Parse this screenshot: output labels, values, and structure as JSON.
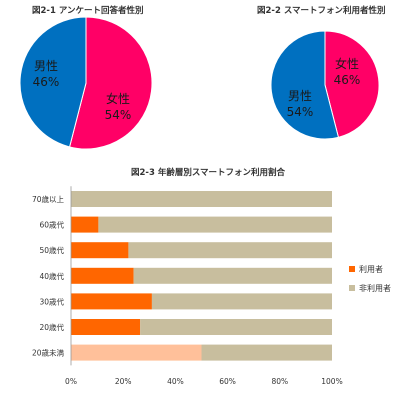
{
  "chart_data": [
    {
      "id": "fig1",
      "type": "pie",
      "title": "図2-1 アンケート回答者性別",
      "slices": [
        {
          "label": "男性",
          "value": 46,
          "display": "46%",
          "color": "#0070C0"
        },
        {
          "label": "女性",
          "value": 54,
          "display": "54%",
          "color": "#FF0066"
        }
      ]
    },
    {
      "id": "fig2",
      "type": "pie",
      "title": "図2-2 スマートフォン利用者性別",
      "slices": [
        {
          "label": "男性",
          "value": 54,
          "display": "54%",
          "color": "#0070C0"
        },
        {
          "label": "女性",
          "value": 46,
          "display": "46%",
          "color": "#FF0066"
        }
      ]
    },
    {
      "id": "fig3",
      "type": "bar",
      "orientation": "horizontal",
      "stacked": "percent",
      "title": "図2-3 年齢層別スマートフォン利用割合",
      "categories": [
        "70歳以上",
        "60歳代",
        "50歳代",
        "40歳代",
        "30歳代",
        "20歳代",
        "20歳未満"
      ],
      "series": [
        {
          "name": "利用者",
          "color": "#FF6600",
          "values": [
            0,
            10.5,
            22,
            24,
            31,
            26.5,
            50
          ]
        },
        {
          "name": "非利用者",
          "color": "#C8BE9E",
          "values": [
            100,
            89.5,
            78,
            76,
            69,
            73.5,
            50
          ]
        }
      ],
      "highlight": {
        "category": "20歳未満",
        "series": "利用者",
        "color": "#FFC09A"
      },
      "xlim": [
        0,
        100
      ],
      "xticks": [
        "0%",
        "20%",
        "40%",
        "60%",
        "80%",
        "100%"
      ],
      "legend": "right",
      "grid": false
    }
  ]
}
